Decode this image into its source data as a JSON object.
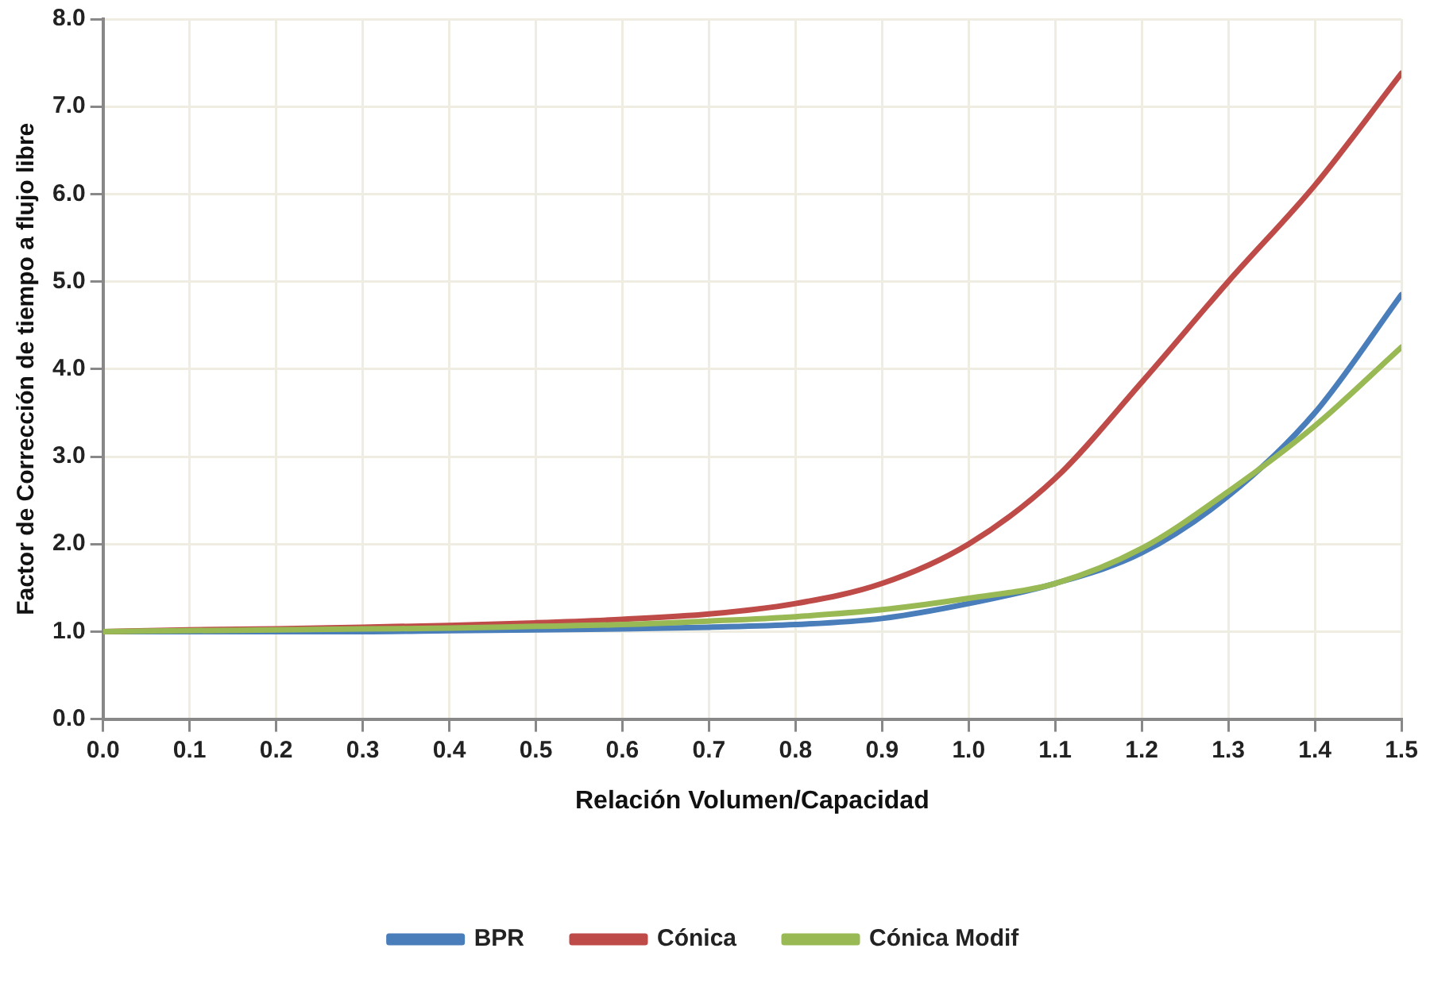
{
  "chart_data": {
    "type": "line",
    "xlabel": "Relación Volumen/Capacidad",
    "ylabel": "Factor de Corrección de tiempo a flujo libre",
    "x": [
      0,
      0.1,
      0.2,
      0.3,
      0.4,
      0.5,
      0.6,
      0.7,
      0.8,
      0.9,
      1.0,
      1.1,
      1.2,
      1.3,
      1.4,
      1.5
    ],
    "series": [
      {
        "name": "BPR",
        "color": "#4a7ebb",
        "values": [
          1.0,
          1.0,
          1.0,
          1.0,
          1.01,
          1.02,
          1.03,
          1.05,
          1.08,
          1.15,
          1.32,
          1.55,
          1.9,
          2.55,
          3.5,
          4.85
        ]
      },
      {
        "name": "Cónica",
        "color": "#be4b48",
        "values": [
          1.0,
          1.02,
          1.03,
          1.05,
          1.07,
          1.1,
          1.14,
          1.2,
          1.32,
          1.55,
          2.0,
          2.75,
          3.85,
          5.0,
          6.1,
          7.38
        ]
      },
      {
        "name": "Cónica Modif",
        "color": "#98b954",
        "values": [
          1.0,
          1.01,
          1.02,
          1.03,
          1.04,
          1.06,
          1.08,
          1.12,
          1.17,
          1.25,
          1.38,
          1.55,
          1.95,
          2.6,
          3.35,
          4.25
        ]
      }
    ],
    "xlim": [
      0,
      1.5
    ],
    "xticks": [
      {
        "value": 0,
        "label": "0.0"
      },
      {
        "value": 0.1,
        "label": "0.1"
      },
      {
        "value": 0.2,
        "label": "0.2"
      },
      {
        "value": 0.3,
        "label": "0.3"
      },
      {
        "value": 0.4,
        "label": "0.4"
      },
      {
        "value": 0.5,
        "label": "0.5"
      },
      {
        "value": 0.6,
        "label": "0.6"
      },
      {
        "value": 0.7,
        "label": "0.7"
      },
      {
        "value": 0.8,
        "label": "0.8"
      },
      {
        "value": 0.9,
        "label": "0.9"
      },
      {
        "value": 1,
        "label": "1.0"
      },
      {
        "value": 1.1,
        "label": "1.1"
      },
      {
        "value": 1.2,
        "label": "1.2"
      },
      {
        "value": 1.3,
        "label": "1.3"
      },
      {
        "value": 1.4,
        "label": "1.4"
      },
      {
        "value": 1.5,
        "label": "1.5"
      }
    ],
    "ylim": [
      0,
      8
    ],
    "yticks": [
      {
        "value": 0,
        "label": "0.0"
      },
      {
        "value": 1,
        "label": "1.0"
      },
      {
        "value": 2,
        "label": "2.0"
      },
      {
        "value": 3,
        "label": "3.0"
      },
      {
        "value": 4,
        "label": "4.0"
      },
      {
        "value": 5,
        "label": "5.0"
      },
      {
        "value": 6,
        "label": "6.0"
      },
      {
        "value": 7,
        "label": "7.0"
      },
      {
        "value": 8,
        "label": "8.0"
      }
    ],
    "grid": true,
    "legend": "bottom",
    "marker": "none",
    "line_style": "solid"
  }
}
